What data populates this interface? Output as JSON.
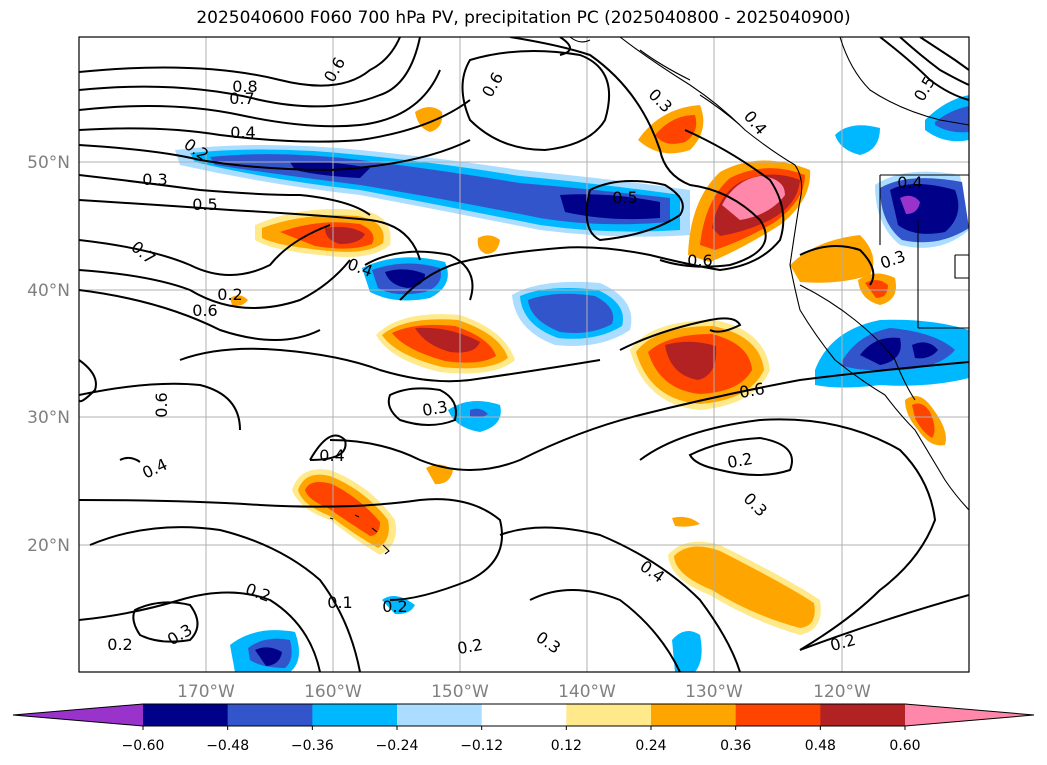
{
  "title": "2025040600 F060 700 hPa PV, precipitation PC (2025040800 - 2025040900)",
  "map": {
    "lat_labels": [
      "50°N",
      "40°N",
      "30°N",
      "20°N"
    ],
    "lon_labels": [
      "170°W",
      "160°W",
      "150°W",
      "140°W",
      "130°W",
      "120°W"
    ],
    "contour_labels": [
      "0.8",
      "0.7",
      "0.6",
      "0.4",
      "0.2",
      "0.3",
      "0.5",
      "0.7",
      "0.6",
      "0.4",
      "0.6",
      "0.5",
      "0.6",
      "0.3",
      "0.4",
      "0.3",
      "0.4",
      "0.4",
      "0.2",
      "0.3",
      "0.2",
      "0.2",
      "0.3",
      "0.2",
      "0.2",
      "0.4",
      "0.3",
      "0.2",
      "0.6",
      "0.5",
      "0.4",
      "0.3",
      "0.2",
      "0.6",
      "0.1"
    ],
    "colors": {
      "land_outline": "#000000",
      "contour": "#000000",
      "grid": "#b0b0b0"
    }
  },
  "colorbar": {
    "ticks": [
      "−0.60",
      "−0.48",
      "−0.36",
      "−0.24",
      "−0.12",
      "0.12",
      "0.24",
      "0.36",
      "0.48",
      "0.60"
    ],
    "colors": [
      "#9933cc",
      "#000088",
      "#3355cc",
      "#00b8ff",
      "#aaddff",
      "#ffffff",
      "#ffe98a",
      "#ffa500",
      "#ff4400",
      "#b22222",
      "#ff88aa"
    ]
  }
}
